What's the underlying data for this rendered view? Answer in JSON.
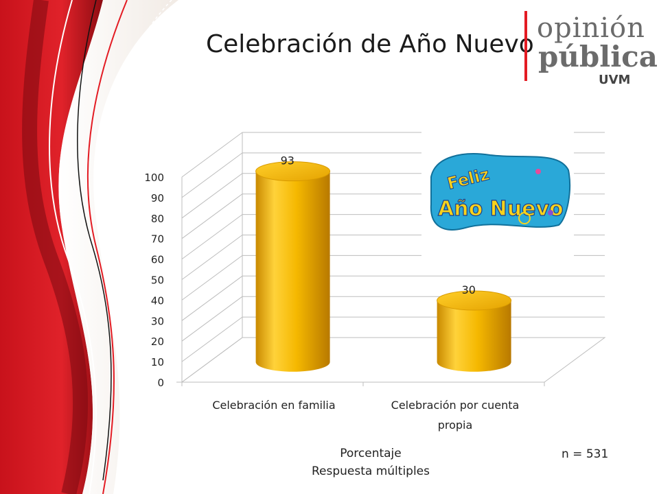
{
  "slide": {
    "title": "Celebración de Año Nuevo",
    "caption_line1": "Porcentaje",
    "caption_line2": "Respuesta múltiples",
    "sample_size": "n = 531"
  },
  "logo": {
    "line1": "opinión",
    "line2": "pública",
    "line3": "UVM"
  },
  "badge_image": {
    "text_line1": "Feliz",
    "text_line2": "Año Nuevo"
  },
  "colors": {
    "accent_red": "#e31b23",
    "bar_gold": "#f2b705",
    "badge_blue": "#2aa8d8"
  },
  "chart_data": {
    "type": "bar",
    "style": "3d-cylinder",
    "categories": [
      "Celebración en familia",
      "Celebración por cuenta propia"
    ],
    "values": [
      93,
      30
    ],
    "data_labels": [
      "93",
      "30"
    ],
    "ylim": [
      0,
      100
    ],
    "yticks": [
      0,
      10,
      20,
      30,
      40,
      50,
      60,
      70,
      80,
      90,
      100
    ],
    "grid": true,
    "legend": "none"
  }
}
